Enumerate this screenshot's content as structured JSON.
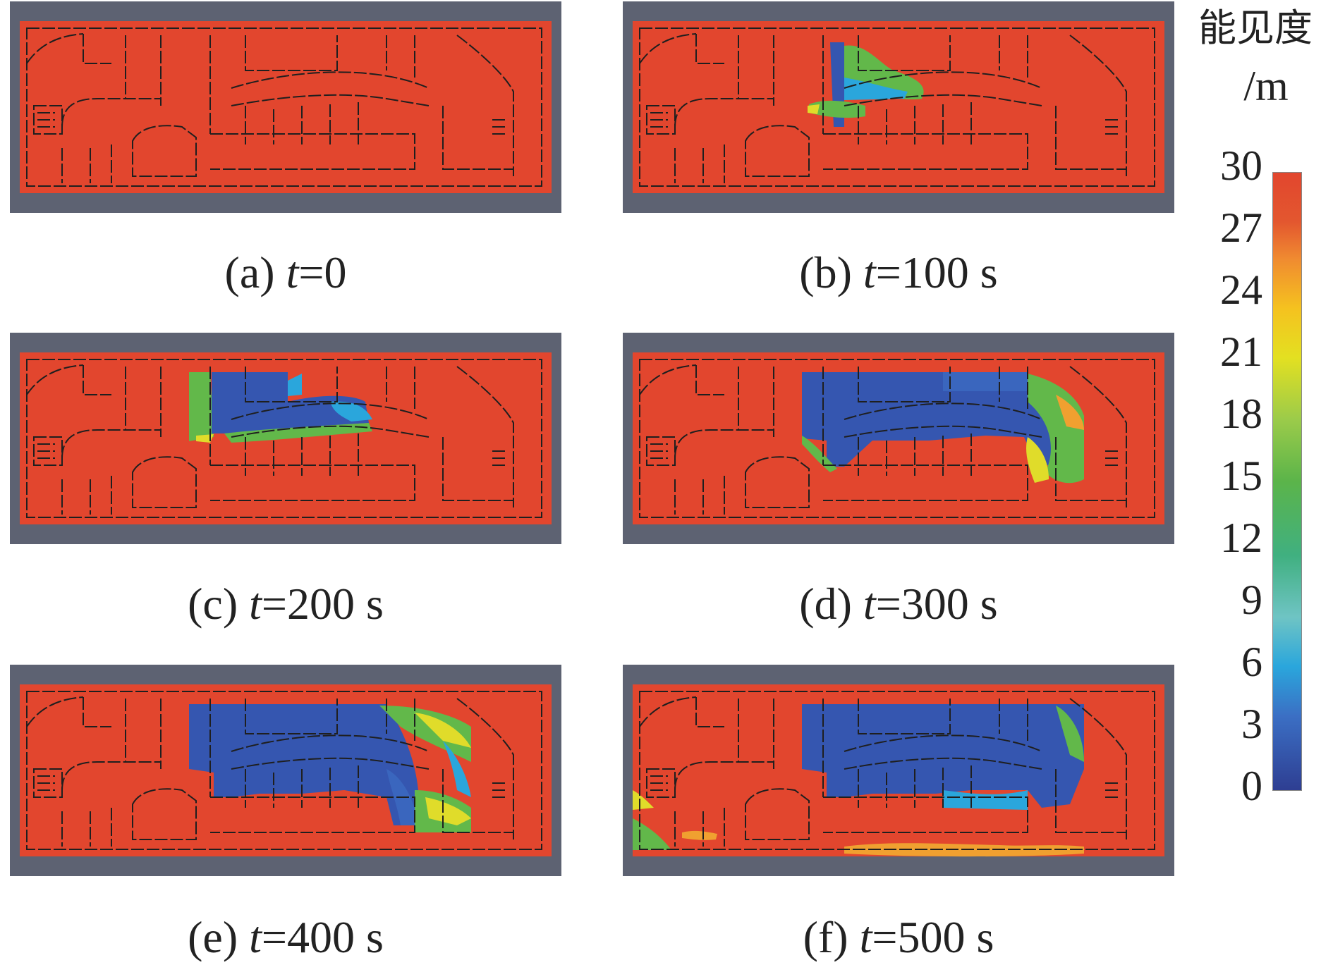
{
  "panels": [
    {
      "letter": "(a)",
      "tvar": "t",
      "value": "=0",
      "state": "clear"
    },
    {
      "letter": "(b)",
      "tvar": "t",
      "value": "=100 s",
      "state": "t100"
    },
    {
      "letter": "(c)",
      "tvar": "t",
      "value": "=200 s",
      "state": "t200"
    },
    {
      "letter": "(d)",
      "tvar": "t",
      "value": "=300 s",
      "state": "t300"
    },
    {
      "letter": "(e)",
      "tvar": "t",
      "value": "=400 s",
      "state": "t400"
    },
    {
      "letter": "(f)",
      "tvar": "t",
      "value": "=500 s",
      "state": "t500"
    }
  ],
  "colorbar": {
    "title": "能见度",
    "unit": "/m",
    "ticks": [
      "30",
      "27",
      "24",
      "21",
      "18",
      "15",
      "12",
      "9",
      "6",
      "3",
      "0"
    ],
    "range": [
      0,
      30
    ],
    "colors": {
      "high": "#e2462e",
      "low": "#2e3e92",
      "frame": "#5d6272"
    }
  }
}
